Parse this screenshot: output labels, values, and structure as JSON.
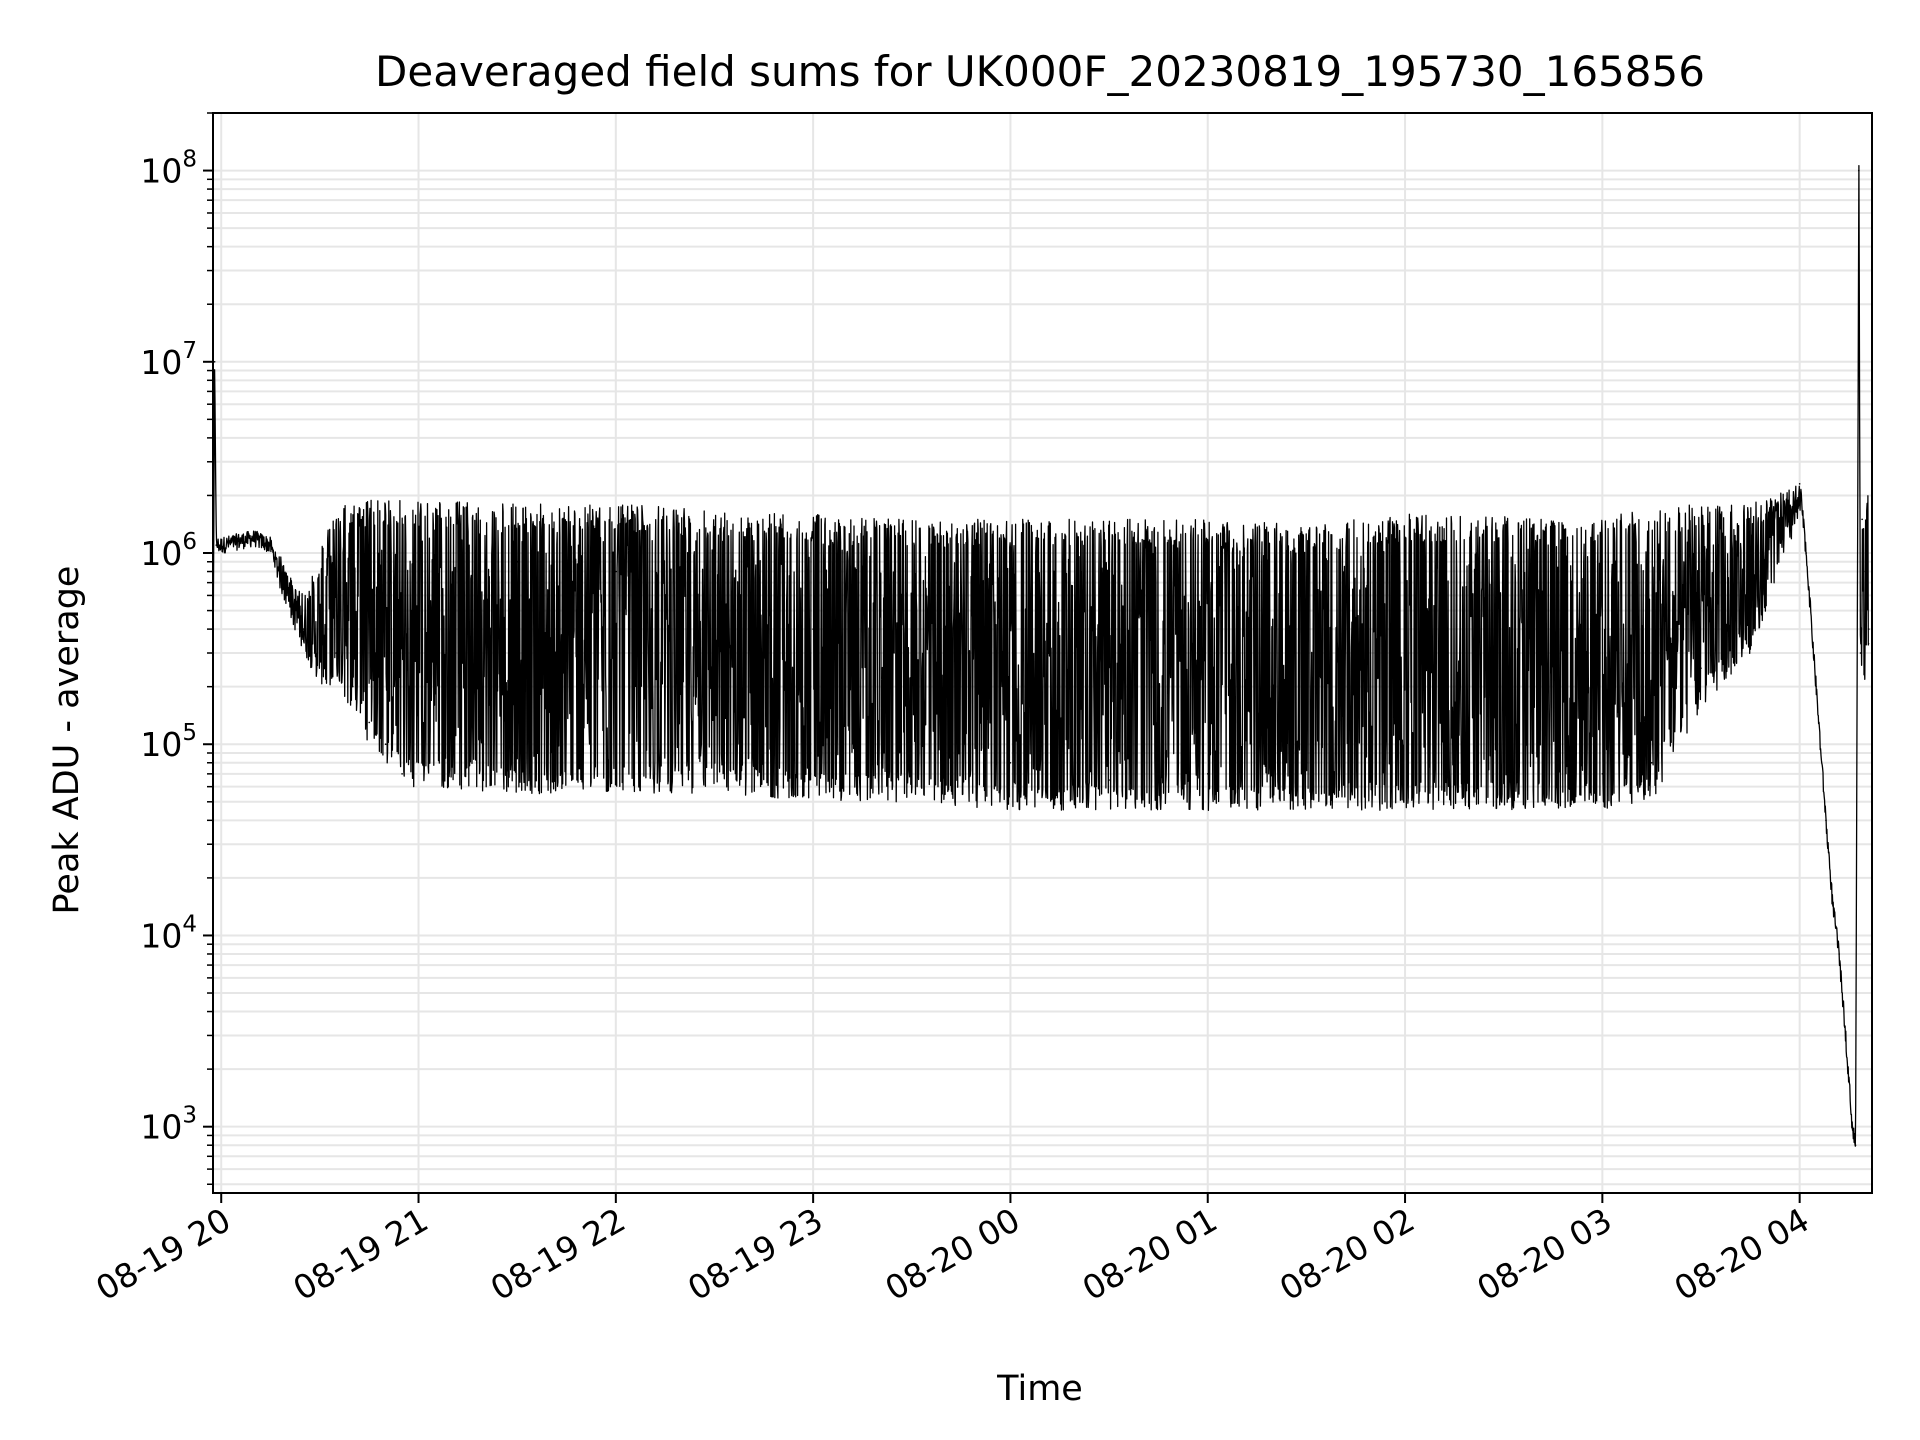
{
  "chart_data": {
    "type": "line",
    "title": "Deaveraged field sums for UK000F_20230819_195730_165856",
    "xlabel": "Time",
    "ylabel": "Peak ADU - average",
    "yscale": "log",
    "ylim": [
      450,
      200000000
    ],
    "xlim": [
      "2023-08-19 19:57:30",
      "2023-08-20 04:22:00"
    ],
    "grid": true,
    "line_color": "#000000",
    "grid_color": "#e6e6e6",
    "x_ticks": [
      {
        "t": "2023-08-19 20:00",
        "label": "08-19 20"
      },
      {
        "t": "2023-08-19 21:00",
        "label": "08-19 21"
      },
      {
        "t": "2023-08-19 22:00",
        "label": "08-19 22"
      },
      {
        "t": "2023-08-19 23:00",
        "label": "08-19 23"
      },
      {
        "t": "2023-08-20 00:00",
        "label": "08-20 00"
      },
      {
        "t": "2023-08-20 01:00",
        "label": "08-20 01"
      },
      {
        "t": "2023-08-20 02:00",
        "label": "08-20 02"
      },
      {
        "t": "2023-08-20 03:00",
        "label": "08-20 03"
      },
      {
        "t": "2023-08-20 04:00",
        "label": "08-20 04"
      }
    ],
    "y_ticks": [
      {
        "value": 1000,
        "base": "10",
        "exp": "3"
      },
      {
        "value": 10000,
        "base": "10",
        "exp": "4"
      },
      {
        "value": 100000,
        "base": "10",
        "exp": "5"
      },
      {
        "value": 1000000,
        "base": "10",
        "exp": "6"
      },
      {
        "value": 10000000,
        "base": "10",
        "exp": "7"
      },
      {
        "value": 100000000,
        "base": "10",
        "exp": "8"
      }
    ],
    "series": [
      {
        "values_note": "",
        "x": [
          "2023-08-19 19:57:30",
          "2023-08-19 19:58:00",
          "2023-08-19 19:58:30",
          "2023-08-19 19:59:00",
          "2023-08-19 20:00:00",
          "2023-08-19 20:05:00",
          "2023-08-19 20:10:00",
          "2023-08-19 20:15:00",
          "2023-08-19 20:20:00",
          "2023-08-19 20:25:00",
          "2023-08-19 20:30:00",
          "2023-08-19 20:35:00",
          "2023-08-19 20:40:00",
          "2023-08-19 20:45:00",
          "2023-08-19 20:50:00",
          "2023-08-19 20:55:00",
          "2023-08-19 21:00:00",
          "2023-08-19 21:30:00",
          "2023-08-19 22:00:00",
          "2023-08-19 22:30:00",
          "2023-08-19 23:00:00",
          "2023-08-19 23:30:00",
          "2023-08-20 00:00:00",
          "2023-08-20 00:30:00",
          "2023-08-20 01:00:00",
          "2023-08-20 01:30:00",
          "2023-08-20 02:00:00",
          "2023-08-20 02:30:00",
          "2023-08-20 03:00:00",
          "2023-08-20 03:15:00",
          "2023-08-20 03:30:00",
          "2023-08-20 03:45:00",
          "2023-08-20 04:00:00",
          "2023-08-20 04:02:00",
          "2023-08-20 04:05:00",
          "2023-08-20 04:08:00",
          "2023-08-20 04:10:00",
          "2023-08-20 04:12:00",
          "2023-08-20 04:14:00",
          "2023-08-20 04:16:00",
          "2023-08-20 04:17:00",
          "2023-08-20 04:18:00",
          "2023-08-20 04:18:30",
          "2023-08-20 04:19:00",
          "2023-08-20 04:20:00",
          "2023-08-20 04:21:00"
        ],
        "y": [
          200000,
          10000000,
          1100000,
          1100000,
          1100000,
          1150000,
          1200000,
          1100000,
          600000,
          400000,
          300000,
          300000,
          200000,
          130000,
          100000,
          70000,
          600000,
          900000,
          800000,
          700000,
          400000,
          200000,
          80000,
          65000,
          70000,
          80000,
          350000,
          200000,
          70000,
          80000,
          250000,
          400000,
          2300000,
          1000000,
          200000,
          40000,
          15000,
          8000,
          3000,
          1000,
          800,
          100000000,
          300000,
          1500000,
          800000,
          400000
        ],
        "band_low": [
          200000,
          10000000,
          1000000,
          1000000,
          1000000,
          1000000,
          1000000,
          900000,
          500000,
          300000,
          200000,
          200000,
          150000,
          100000,
          80000,
          60000,
          60000,
          55000,
          55000,
          55000,
          50000,
          50000,
          45000,
          45000,
          45000,
          45000,
          45000,
          45000,
          45000,
          50000,
          150000,
          300000,
          1500000,
          800000,
          200000,
          40000,
          15000,
          8000,
          3000,
          1000,
          800,
          100000000,
          300000,
          200000,
          200000,
          200000
        ],
        "band_high": [
          200000,
          10000000,
          1300000,
          1300000,
          1300000,
          1400000,
          1400000,
          1300000,
          800000,
          600000,
          1000000,
          1800000,
          1900000,
          1900000,
          1900000,
          1900000,
          1900000,
          1800000,
          1800000,
          1700000,
          1600000,
          1500000,
          1500000,
          1500000,
          1500000,
          1400000,
          1600000,
          1600000,
          1500000,
          1800000,
          1800000,
          1800000,
          2300000,
          1000000,
          200000,
          40000,
          15000,
          8000,
          3000,
          1000,
          800,
          100000000,
          300000,
          2000000,
          2000000,
          2000000
        ]
      }
    ]
  }
}
